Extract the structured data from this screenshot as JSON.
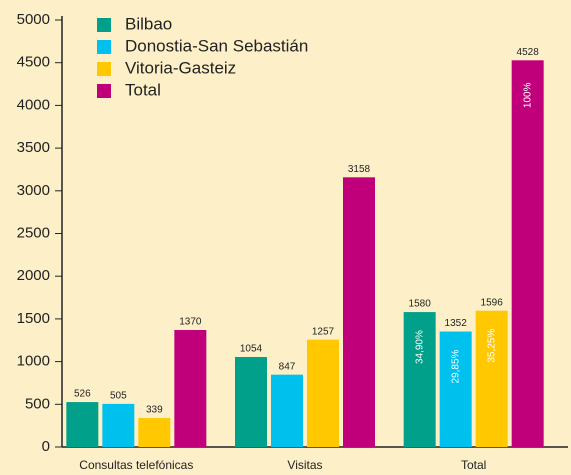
{
  "chart_data": {
    "type": "bar",
    "categories": [
      "Consultas telefónicas",
      "Visitas",
      "Total"
    ],
    "series": [
      {
        "name": "Bilbao",
        "color": "#00a08a",
        "values": [
          526,
          1054,
          1580
        ],
        "share_labels": [
          null,
          null,
          "34,90%"
        ]
      },
      {
        "name": "Donostia-San Sebastián",
        "color": "#00c0ee",
        "values": [
          505,
          847,
          1352
        ],
        "share_labels": [
          null,
          null,
          "29,85%"
        ]
      },
      {
        "name": "Vitoria-Gasteiz",
        "color": "#ffc800",
        "values": [
          339,
          1257,
          1596
        ],
        "share_labels": [
          null,
          null,
          "35,25%"
        ]
      },
      {
        "name": "Total",
        "color": "#c0007a",
        "values": [
          1370,
          3158,
          4528
        ],
        "share_labels": [
          null,
          null,
          "100%"
        ]
      }
    ],
    "ylim": [
      0,
      5000
    ],
    "yticks": [
      0,
      500,
      1000,
      1500,
      2000,
      2500,
      3000,
      3500,
      4000,
      4500,
      5000
    ],
    "legend": "top-left"
  }
}
